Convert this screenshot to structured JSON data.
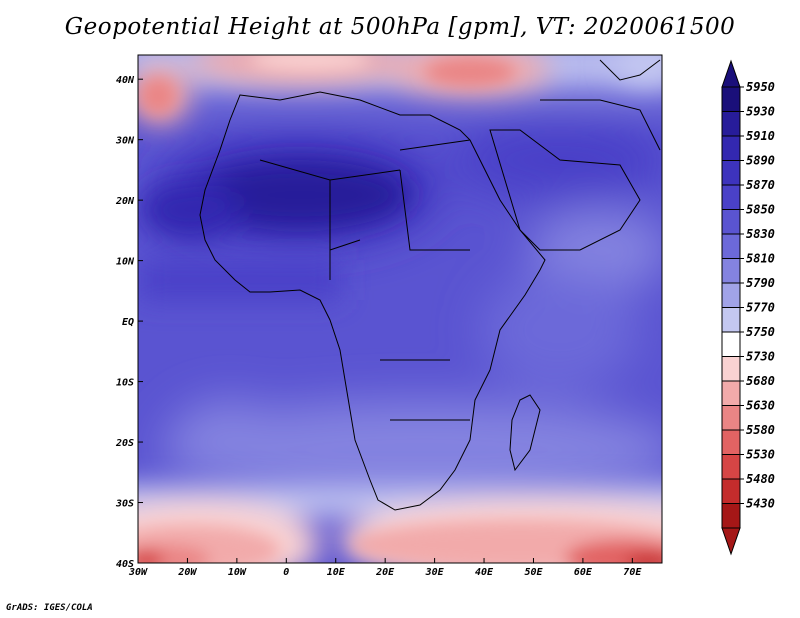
{
  "title": "Geopotential Height at 500hPa [gpm], VT: 2020061500",
  "credit": "GrADS: IGES/COLA",
  "map": {
    "variable": "Geopotential Height at 500hPa",
    "units": "gpm",
    "valid_time": "2020061500",
    "lon_range": [
      -30,
      76
    ],
    "lat_range": [
      -40,
      44
    ],
    "lon_ticks": [
      "30W",
      "20W",
      "10W",
      "0",
      "10E",
      "20E",
      "30E",
      "40E",
      "50E",
      "60E",
      "70E"
    ],
    "lat_ticks": [
      "40S",
      "30S",
      "20S",
      "10S",
      "EQ",
      "10N",
      "20N",
      "30N",
      "40N"
    ]
  },
  "colorbar": {
    "levels": [
      "5950",
      "5930",
      "5910",
      "5890",
      "5870",
      "5850",
      "5830",
      "5810",
      "5790",
      "5770",
      "5750",
      "5730",
      "5680",
      "5630",
      "5580",
      "5530",
      "5480",
      "5430"
    ],
    "colors": [
      "#1a0f7a",
      "#271c9a",
      "#3328b0",
      "#3d33bd",
      "#4a41c8",
      "#5a54d1",
      "#6c69d9",
      "#8483e0",
      "#a1a3e8",
      "#c4c8f1",
      "#ffffff",
      "#f9d2d2",
      "#f2aaaa",
      "#ea8585",
      "#e26363",
      "#d64545",
      "#c42c2c",
      "#a51717"
    ],
    "top_arrow_color": "#1a0f7a",
    "bottom_arrow_color": "#a51717"
  }
}
